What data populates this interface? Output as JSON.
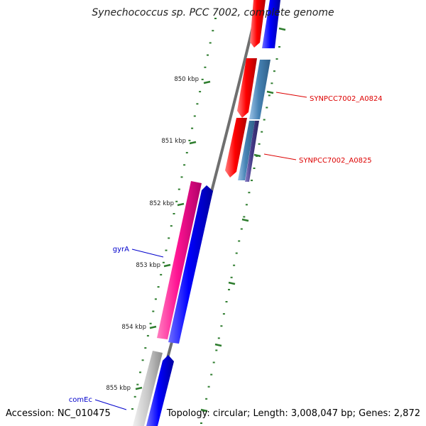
{
  "title": "Synechococcus sp. PCC 7002, complete genome",
  "accession": "Accession: NC_010475",
  "topology": "Topology: circular; Length: 3,008,047 bp; Genes: 2,872",
  "kbp_labels": [
    "850 kbp",
    "851 kbp",
    "852 kbp",
    "853 kbp",
    "854 kbp",
    "855 kbp"
  ],
  "genes": {
    "a0824": {
      "name": "SYNPCC7002_A0824",
      "color": "#cc0000"
    },
    "a0825": {
      "name": "SYNPCC7002_A0825",
      "color": "#cc0000"
    },
    "gyrA": {
      "name": "gyrA",
      "color": "#0000cc"
    },
    "comEc": {
      "name": "comEc",
      "color": "#0000cc"
    }
  },
  "colors": {
    "backbone": "#808080",
    "tick": "#2e7d2e",
    "red_cds": "#ff0000",
    "blue_cds": "#0000ff",
    "steel_cds": "#4682b4",
    "purple_cds": "#483d8b",
    "pink_cds": "#ff1493",
    "gray_cds": "#c0c0c0"
  }
}
